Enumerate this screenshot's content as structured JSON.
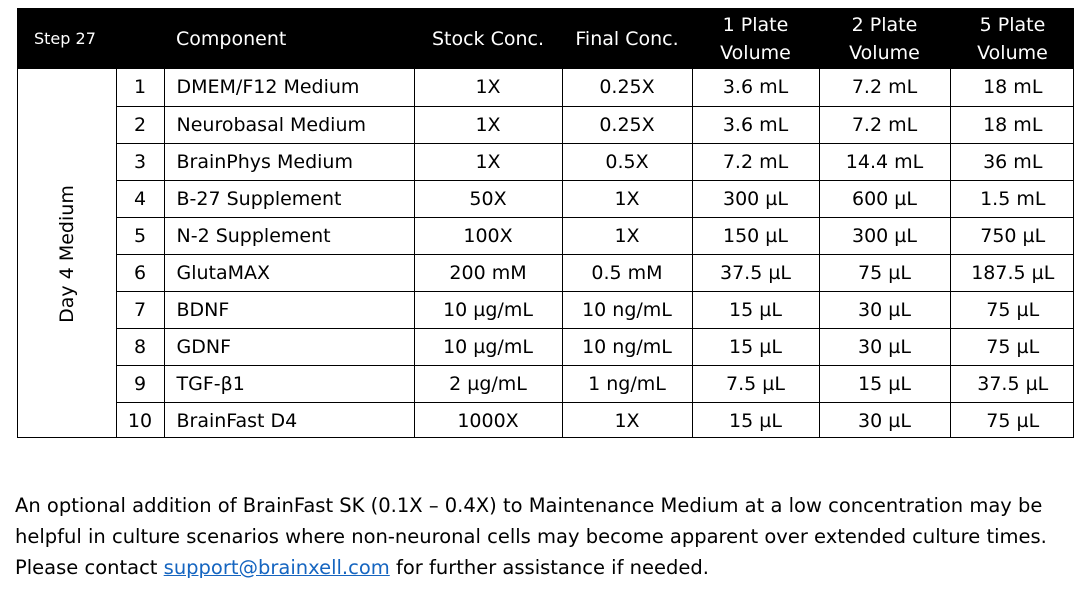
{
  "table": {
    "headers": {
      "step": "Step 27",
      "component": "Component",
      "stock": "Stock Conc.",
      "final": "Final Conc.",
      "plate1_line1": "1 Plate",
      "plate1_line2": "Volume",
      "plate2_line1": "2 Plate",
      "plate2_line2": "Volume",
      "plate5_line1": "5 Plate",
      "plate5_line2": "Volume"
    },
    "side_label": "Day 4 Medium",
    "rows": [
      {
        "num": "1",
        "component": "DMEM/F12 Medium",
        "stock": "1X",
        "final": "0.25X",
        "v1": "3.6 mL",
        "v2": "7.2 mL",
        "v5": "18 mL"
      },
      {
        "num": "2",
        "component": "Neurobasal Medium",
        "stock": "1X",
        "final": "0.25X",
        "v1": "3.6 mL",
        "v2": "7.2 mL",
        "v5": "18 mL"
      },
      {
        "num": "3",
        "component": "BrainPhys Medium",
        "stock": "1X",
        "final": "0.5X",
        "v1": "7.2 mL",
        "v2": "14.4 mL",
        "v5": "36 mL"
      },
      {
        "num": "4",
        "component": "B-27 Supplement",
        "stock": "50X",
        "final": "1X",
        "v1": "300 µL",
        "v2": "600 µL",
        "v5": "1.5 mL"
      },
      {
        "num": "5",
        "component": "N-2 Supplement",
        "stock": "100X",
        "final": "1X",
        "v1": "150 µL",
        "v2": "300 µL",
        "v5": "750 µL"
      },
      {
        "num": "6",
        "component": "GlutaMAX",
        "stock": "200 mM",
        "final": "0.5 mM",
        "v1": "37.5 µL",
        "v2": "75 µL",
        "v5": "187.5 µL"
      },
      {
        "num": "7",
        "component": "BDNF",
        "stock": "10 µg/mL",
        "final": "10 ng/mL",
        "v1": "15 µL",
        "v2": "30 µL",
        "v5": "75 µL"
      },
      {
        "num": "8",
        "component": "GDNF",
        "stock": "10 µg/mL",
        "final": "10 ng/mL",
        "v1": "15 µL",
        "v2": "30 µL",
        "v5": "75 µL"
      },
      {
        "num": "9",
        "component": "TGF-β1",
        "stock": "2 µg/mL",
        "final": "1 ng/mL",
        "v1": "7.5 µL",
        "v2": "15 µL",
        "v5": "37.5 µL"
      },
      {
        "num": "10",
        "component": "BrainFast D4",
        "stock": "1000X",
        "final": "1X",
        "v1": "15 µL",
        "v2": "30 µL",
        "v5": "75 µL"
      }
    ]
  },
  "note": {
    "text_before": "An optional addition of BrainFast SK (0.1X – 0.4X) to Maintenance Medium at a low concentration may be helpful in culture scenarios where non-neuronal cells may become apparent over extended culture times. Please contact ",
    "link_text": "support@brainxell.com",
    "text_after": " for further assistance if needed."
  },
  "colors": {
    "header_bg": "#000000",
    "header_text": "#ffffff",
    "link": "#1565c0"
  }
}
